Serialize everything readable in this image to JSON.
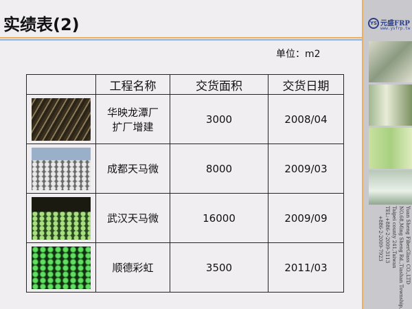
{
  "title": "实绩表(2)",
  "unit": "单位：m2",
  "logo": {
    "badge": "YS",
    "name": "元盛FRP",
    "url": "www.ysfrp.tw"
  },
  "table": {
    "headers": [
      "",
      "工程名称",
      "交货面积",
      "交货日期"
    ],
    "rows": [
      {
        "name": "华映龙潭厂\n扩厂增建",
        "name1": "华映龙潭厂",
        "name2": "扩厂增建",
        "area": "3000",
        "date": "2008/04"
      },
      {
        "name1": "成都天马微",
        "area": "8000",
        "date": "2009/03"
      },
      {
        "name1": "武汉天马微",
        "area": "16000",
        "date": "2009/09"
      },
      {
        "name1": "顺德彩虹",
        "area": "3500",
        "date": "2011/03"
      }
    ]
  },
  "contact": [
    "Yuan Sheng FiberGlass CO.,LTD",
    "NO.68,Ming Sheng Rd.,Tiashan Township,",
    "Taipei county 241,Taiwan",
    "TEL:+886-2-2009-3113",
    "+886-2-2009-7923"
  ],
  "colors": {
    "accent_orange": "#e8b060",
    "accent_blue": "#8fb0e0",
    "brand": "#2a3f8a"
  }
}
